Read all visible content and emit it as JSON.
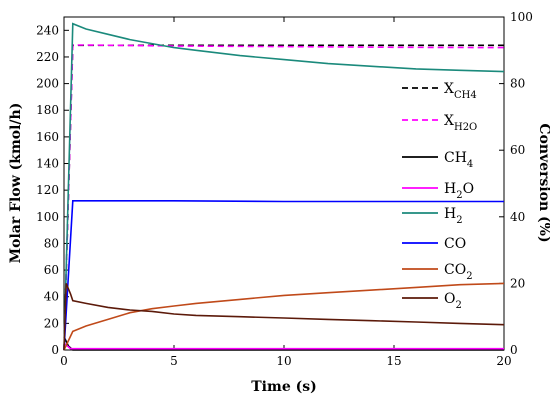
{
  "chart_data": {
    "type": "line",
    "xlabel": "Time (s)",
    "ylabel": "Molar Flow (kmol/h)",
    "y2label": "Conversion (%)",
    "xlim": [
      0,
      20
    ],
    "ylim": [
      0,
      250
    ],
    "y2lim": [
      0,
      100
    ],
    "x_ticks": [
      "0",
      "5",
      "10",
      "15",
      "20"
    ],
    "y_ticks": [
      "0",
      "20",
      "40",
      "60",
      "80",
      "100",
      "120",
      "140",
      "160",
      "180",
      "200",
      "220",
      "240"
    ],
    "y2_ticks": [
      "0",
      "20",
      "40",
      "60",
      "80",
      "100"
    ],
    "grid": false,
    "legend_position": "right",
    "series": [
      {
        "name": "X_CH4",
        "label_main": "X",
        "label_sub": "CH4",
        "axis": "right",
        "color": "#000000",
        "dash": true,
        "x": [
          0,
          0.4,
          20
        ],
        "y": [
          0,
          91.5,
          91.5
        ]
      },
      {
        "name": "X_H2O",
        "label_main": "X",
        "label_sub": "H2O",
        "axis": "right",
        "color": "#ff00ff",
        "dash": true,
        "x": [
          0,
          0.4,
          1,
          5,
          10,
          15,
          20
        ],
        "y": [
          0,
          91.6,
          91.6,
          91.3,
          91.1,
          90.9,
          90.8
        ]
      },
      {
        "name": "CH4",
        "label_main": "CH",
        "label_sub": "4",
        "axis": "left",
        "color": "#000000",
        "dash": false,
        "x": [
          0,
          0.2,
          0.4,
          20
        ],
        "y": [
          10,
          3,
          0,
          0
        ]
      },
      {
        "name": "H2O",
        "label_main": "H",
        "label_sub": "2",
        "label_tail": "O",
        "axis": "left",
        "color": "#ff00ff",
        "dash": false,
        "x": [
          0,
          0.3,
          20
        ],
        "y": [
          5,
          1,
          1
        ]
      },
      {
        "name": "H2",
        "label_main": "H",
        "label_sub": "2",
        "axis": "left",
        "color": "#1b8a7c",
        "dash": false,
        "x": [
          0,
          0.4,
          1,
          2,
          3,
          4,
          5,
          6,
          8,
          10,
          12,
          14,
          16,
          18,
          20
        ],
        "y": [
          0,
          245,
          241,
          237,
          233,
          230,
          227,
          225,
          221,
          218,
          215,
          213,
          211,
          210,
          209
        ]
      },
      {
        "name": "CO",
        "label_main": "CO",
        "axis": "left",
        "color": "#0000ff",
        "dash": false,
        "x": [
          0,
          0.4,
          1,
          5,
          10,
          15,
          20
        ],
        "y": [
          0,
          112,
          112,
          112,
          111.5,
          111.5,
          111.5
        ]
      },
      {
        "name": "CO2",
        "label_main": "CO",
        "label_sub": "2",
        "axis": "left",
        "color": "#c04a1a",
        "dash": false,
        "x": [
          0,
          0.4,
          1,
          2,
          3,
          4,
          5,
          6,
          8,
          10,
          12,
          14,
          16,
          18,
          20
        ],
        "y": [
          0,
          14,
          18,
          23,
          28,
          31,
          33,
          35,
          38,
          41,
          43,
          45,
          47,
          49,
          50
        ]
      },
      {
        "name": "O2",
        "label_main": "O",
        "label_sub": "2",
        "axis": "left",
        "color": "#5c1a0a",
        "dash": false,
        "x": [
          0,
          0.1,
          0.3,
          0.4,
          1,
          2,
          3,
          4,
          5,
          6,
          8,
          10,
          12,
          14,
          16,
          18,
          20
        ],
        "y": [
          0,
          50,
          42,
          37,
          35,
          32,
          30,
          29,
          27,
          26,
          25,
          24,
          23,
          22,
          21,
          20,
          19
        ]
      }
    ]
  }
}
